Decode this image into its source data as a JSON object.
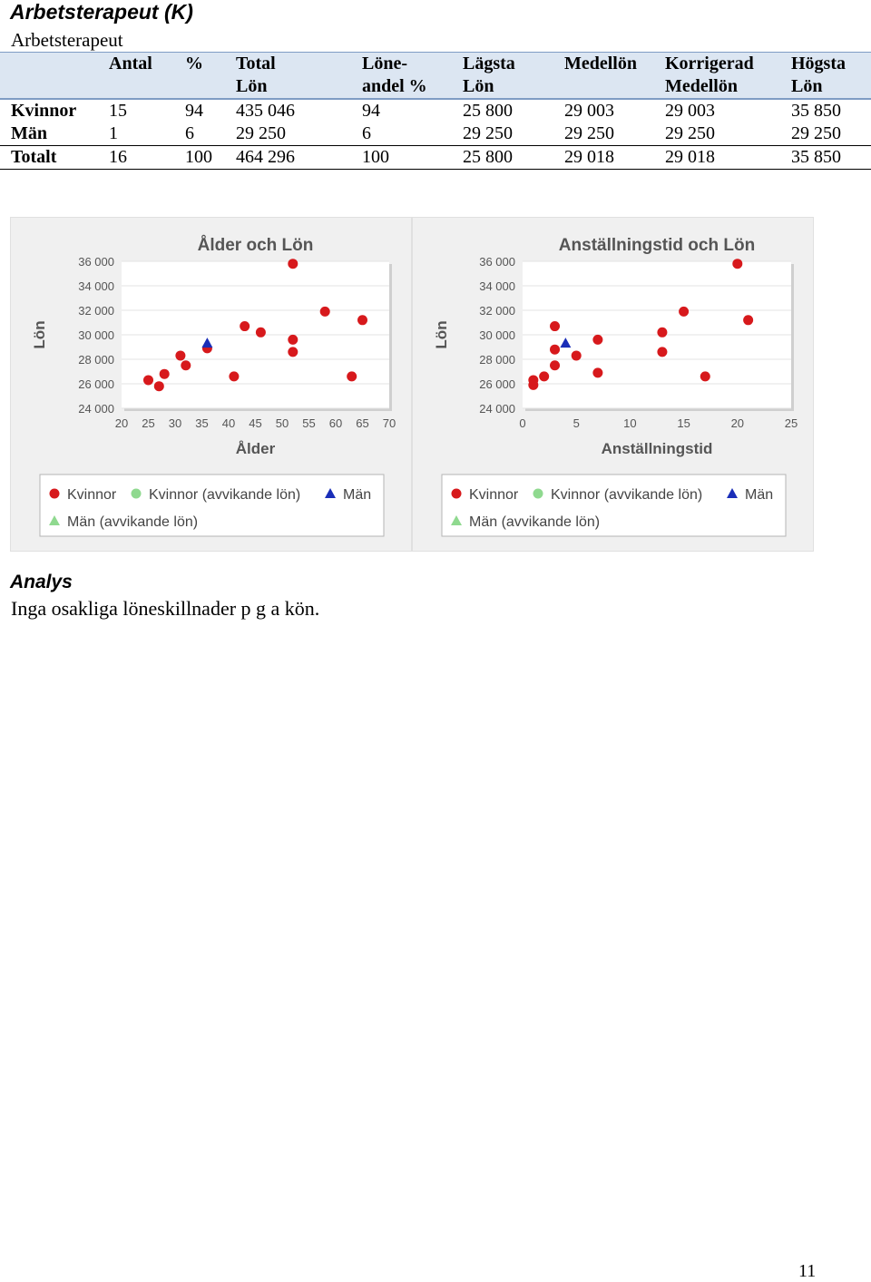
{
  "header": {
    "title": "Arbetsterapeut (K)",
    "subtitle": "Arbetsterapeut"
  },
  "table": {
    "columns": [
      [
        "",
        ""
      ],
      [
        "Antal",
        ""
      ],
      [
        "%",
        ""
      ],
      [
        "Total",
        "Lön"
      ],
      [
        "Löne-",
        "andel %"
      ],
      [
        "Lägsta",
        "Lön"
      ],
      [
        "Medellön",
        ""
      ],
      [
        "Korrigerad",
        "Medellön"
      ],
      [
        "Högsta",
        "Lön"
      ]
    ],
    "rows": [
      [
        "Kvinnor",
        "15",
        "94",
        "435 046",
        "94",
        "25 800",
        "29 003",
        "29 003",
        "35 850"
      ],
      [
        "Män",
        "1",
        "6",
        "29 250",
        "6",
        "29 250",
        "29 250",
        "29 250",
        "29 250"
      ],
      [
        "Totalt",
        "16",
        "100",
        "464 296",
        "100",
        "25 800",
        "29 018",
        "29 018",
        "35 850"
      ]
    ]
  },
  "chart_data": [
    {
      "type": "scatter",
      "title": "Ålder och Lön",
      "xlabel": "Ålder",
      "ylabel": "Lön",
      "xlim": [
        20,
        70
      ],
      "ylim": [
        24000,
        36000
      ],
      "xticks": [
        20,
        25,
        30,
        35,
        40,
        45,
        50,
        55,
        60,
        65,
        70
      ],
      "yticks": [
        24000,
        26000,
        28000,
        30000,
        32000,
        34000,
        36000
      ],
      "xtick_labels": [
        "20",
        "25",
        "30",
        "35",
        "40",
        "45",
        "50",
        "55",
        "60",
        "65",
        "70"
      ],
      "ytick_labels": [
        "24 000",
        "26 000",
        "28 000",
        "30 000",
        "32 000",
        "34 000",
        "36 000"
      ],
      "grid": true,
      "legend": [
        "Kvinnor",
        "Kvinnor (avvikande lön)",
        "Män",
        "Män (avvikande lön)"
      ],
      "series": [
        {
          "name": "Kvinnor",
          "color": "#d7191c",
          "marker": "circle",
          "points": [
            [
              25,
              26300
            ],
            [
              27,
              25800
            ],
            [
              28,
              26800
            ],
            [
              31,
              28300
            ],
            [
              32,
              27500
            ],
            [
              36,
              28900
            ],
            [
              41,
              26600
            ],
            [
              43,
              30700
            ],
            [
              46,
              30200
            ],
            [
              52,
              29600
            ],
            [
              52,
              28600
            ],
            [
              52,
              35800
            ],
            [
              58,
              31900
            ],
            [
              63,
              26600
            ],
            [
              65,
              31200
            ]
          ]
        },
        {
          "name": "Kvinnor (avvikande lön)",
          "color": "#8fd98f",
          "marker": "circle",
          "points": []
        },
        {
          "name": "Män",
          "color": "#1a2eb8",
          "marker": "triangle",
          "points": [
            [
              36,
              29250
            ]
          ]
        },
        {
          "name": "Män (avvikande lön)",
          "color": "#8fd98f",
          "marker": "triangle",
          "points": []
        }
      ]
    },
    {
      "type": "scatter",
      "title": "Anställningstid och Lön",
      "xlabel": "Anställningstid",
      "ylabel": "Lön",
      "xlim": [
        0,
        25
      ],
      "ylim": [
        24000,
        36000
      ],
      "xticks": [
        0,
        5,
        10,
        15,
        20,
        25
      ],
      "yticks": [
        24000,
        26000,
        28000,
        30000,
        32000,
        34000,
        36000
      ],
      "xtick_labels": [
        "0",
        "5",
        "10",
        "15",
        "20",
        "25"
      ],
      "ytick_labels": [
        "24 000",
        "26 000",
        "28 000",
        "30 000",
        "32 000",
        "34 000",
        "36 000"
      ],
      "grid": true,
      "legend": [
        "Kvinnor",
        "Kvinnor (avvikande lön)",
        "Män",
        "Män (avvikande lön)"
      ],
      "series": [
        {
          "name": "Kvinnor",
          "color": "#d7191c",
          "marker": "circle",
          "points": [
            [
              1,
              25900
            ],
            [
              1,
              26300
            ],
            [
              2,
              26600
            ],
            [
              3,
              27500
            ],
            [
              3,
              28800
            ],
            [
              3,
              30700
            ],
            [
              5,
              28300
            ],
            [
              7,
              29600
            ],
            [
              7,
              26900
            ],
            [
              13,
              30200
            ],
            [
              13,
              28600
            ],
            [
              15,
              31900
            ],
            [
              17,
              26600
            ],
            [
              20,
              35800
            ],
            [
              21,
              31200
            ]
          ]
        },
        {
          "name": "Kvinnor (avvikande lön)",
          "color": "#8fd98f",
          "marker": "circle",
          "points": []
        },
        {
          "name": "Män",
          "color": "#1a2eb8",
          "marker": "triangle",
          "points": [
            [
              4,
              29250
            ]
          ]
        },
        {
          "name": "Män (avvikande lön)",
          "color": "#8fd98f",
          "marker": "triangle",
          "points": []
        }
      ]
    }
  ],
  "analys": {
    "heading": "Analys",
    "text": "Inga osakliga löneskillnader p g a kön."
  },
  "page_number": "11"
}
